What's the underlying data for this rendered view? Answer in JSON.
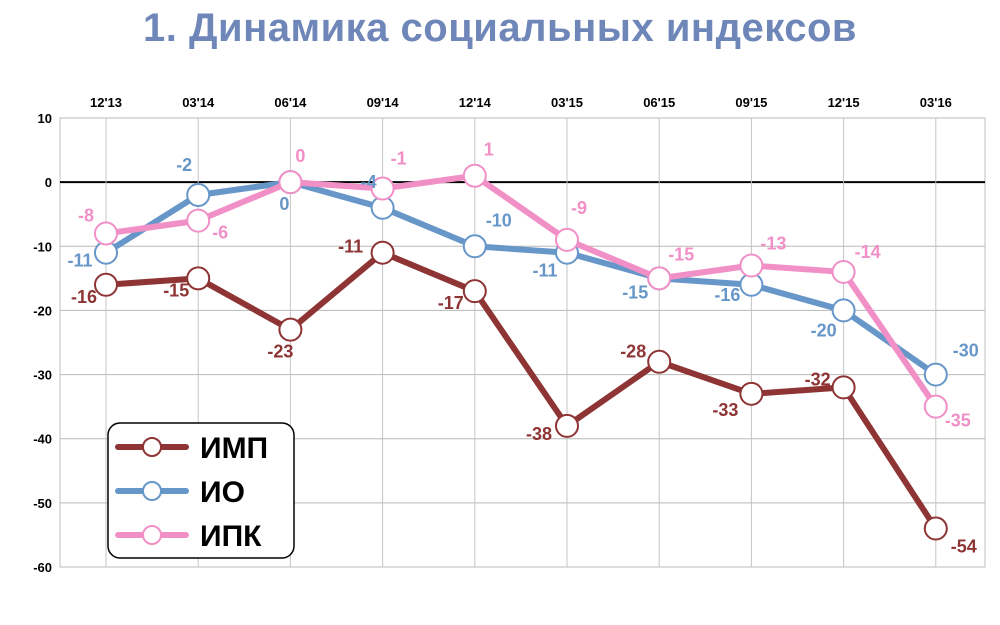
{
  "title": "1. Динамика социальных индексов",
  "chart_data": {
    "type": "line",
    "title": "1. Динамика социальных индексов",
    "categories": [
      "12'13",
      "03'14",
      "06'14",
      "09'14",
      "12'14",
      "03'15",
      "06'15",
      "09'15",
      "12'15",
      "03'16"
    ],
    "ylim": [
      -60,
      10
    ],
    "yticks": [
      10,
      0,
      -10,
      -20,
      -30,
      -40,
      -50,
      -60
    ],
    "grid": true,
    "legend_position": "bottom-left",
    "series": [
      {
        "name": "ИМП",
        "color": "#8e3434",
        "values": [
          -16,
          -15,
          -23,
          -11,
          -17,
          -38,
          -28,
          -33,
          -32,
          -54
        ],
        "labels": [
          "-16",
          "-15",
          "-23",
          "-11",
          "-17",
          "-38",
          "-28",
          "-33",
          "-32",
          "-54"
        ]
      },
      {
        "name": "ИО",
        "color": "#6796c8",
        "values": [
          -11,
          -2,
          0,
          -4,
          -10,
          -11,
          -15,
          -16,
          -20,
          -30
        ],
        "labels": [
          "-11",
          "-2",
          "0",
          "-4",
          "-10",
          "-11",
          "-15",
          "-16",
          "-20",
          "-30"
        ]
      },
      {
        "name": "ИПК",
        "color": "#f18fc7",
        "values": [
          -8,
          -6,
          0,
          -1,
          1,
          -9,
          -15,
          -13,
          -14,
          -35
        ],
        "labels": [
          "-8",
          "-6",
          "0",
          "-1",
          "1",
          "-9",
          "-15",
          "-13",
          "-14",
          "-35"
        ]
      }
    ]
  }
}
